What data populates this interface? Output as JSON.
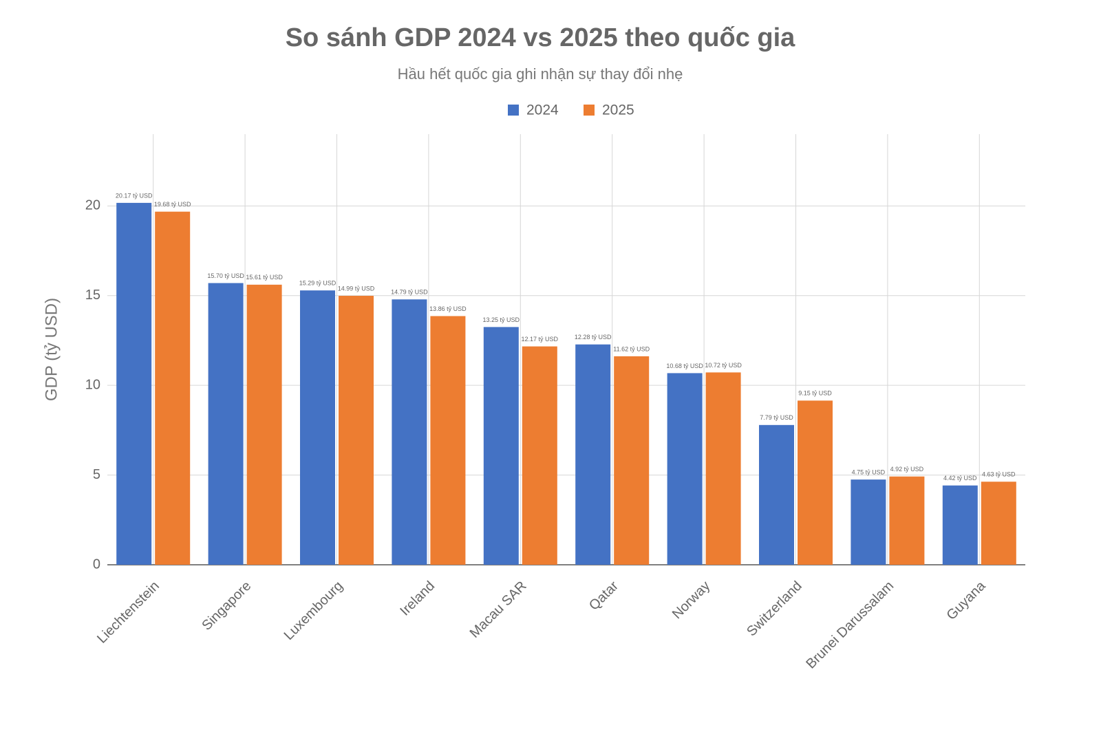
{
  "chart_data": {
    "type": "bar",
    "title": "So sánh GDP 2024 vs 2025 theo quốc gia",
    "subtitle": "Hầu hết quốc gia ghi nhận sự thay đổi nhẹ",
    "y_label": "GDP (tỷ USD)",
    "categories": [
      "Liechtenstein",
      "Singapore",
      "Luxembourg",
      "Ireland",
      "Macau SAR",
      "Qatar",
      "Norway",
      "Switzerland",
      "Brunei Darussalam",
      "Guyana"
    ],
    "series": [
      {
        "name": "2024",
        "color": "#4472c4",
        "values": [
          20.17,
          15.7,
          15.29,
          14.79,
          13.25,
          12.28,
          10.68,
          7.79,
          4.75,
          4.42
        ],
        "value_labels": [
          "20.17 tỷ USD",
          "15.70 tỷ USD",
          "15.29 tỷ USD",
          "14.79 tỷ USD",
          "13.25 tỷ USD",
          "12.28 tỷ USD",
          "10.68 tỷ USD",
          "7.79 tỷ USD",
          "4.75 tỷ USD",
          "4.42 tỷ USD"
        ]
      },
      {
        "name": "2025",
        "color": "#ed7d31",
        "values": [
          19.68,
          15.61,
          14.99,
          13.86,
          12.17,
          11.62,
          10.72,
          9.15,
          4.92,
          4.63
        ],
        "value_labels": [
          "19.68 tỷ USD",
          "15.61 tỷ USD",
          "14.99 tỷ USD",
          "13.86 tỷ USD",
          "12.17 tỷ USD",
          "11.62 tỷ USD",
          "10.72 tỷ USD",
          "9.15 tỷ USD",
          "4.92 tỷ USD",
          "4.63 tỷ USD"
        ]
      }
    ],
    "ylim": [
      0,
      24
    ],
    "yticks": [
      0,
      5,
      10,
      15,
      20
    ],
    "grid": true,
    "legend": "top"
  }
}
